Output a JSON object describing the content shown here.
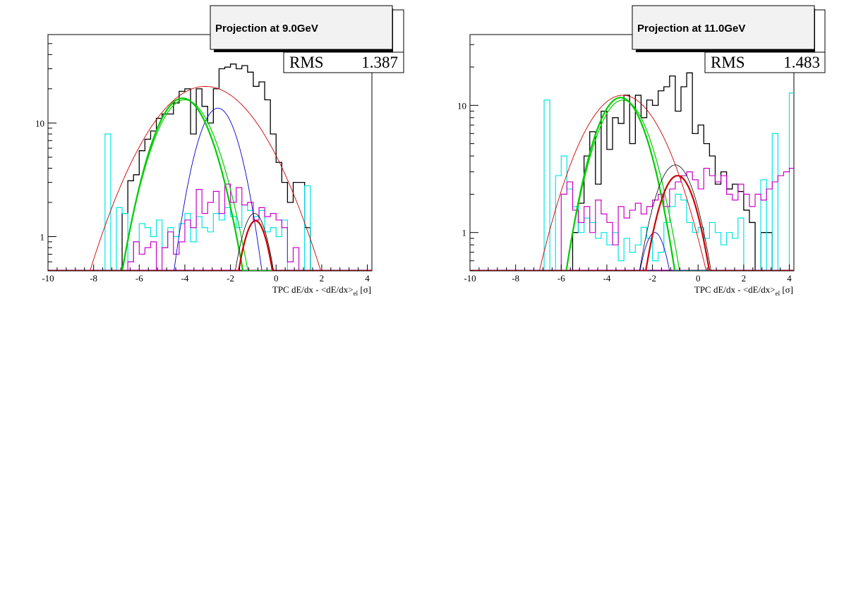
{
  "chart_data": [
    {
      "type": "histogram",
      "title": "Projection at 9.0GeV",
      "xlabel_main": "TPC dE/dx - <dE/dx>",
      "xlabel_sub": "el",
      "xlabel_unit": " [σ]",
      "xlim": [
        -10,
        4.2
      ],
      "ylim": [
        0.5,
        60
      ],
      "yscale": "log",
      "xticks": [
        "-10",
        "-8",
        "-6",
        "-4",
        "-2",
        "0",
        "2",
        "4"
      ],
      "yticks": [
        "1",
        "10"
      ],
      "stats": {
        "label": "RMS",
        "value": "1.387"
      },
      "series": [
        {
          "color": "#000000",
          "width": 1.3,
          "x_start": -7.0,
          "bin_width": 0.25,
          "values": [
            0.5,
            1.6,
            3.1,
            3.5,
            5.7,
            7.2,
            8.5,
            11,
            12,
            12,
            15,
            19,
            20,
            8,
            20,
            14,
            10,
            20,
            30,
            31,
            33,
            30,
            32,
            28,
            21,
            23,
            16,
            8,
            4.5,
            3,
            2,
            3,
            3,
            1.2
          ]
        },
        {
          "color": "#00e5e5",
          "width": 1.2,
          "x_start": -7.5,
          "bin_width": 0.25,
          "values": [
            8,
            0.5,
            1.8,
            1.6,
            0.6,
            0.9,
            1.3,
            1.2,
            1.0,
            1.4,
            0.8,
            1.2,
            1.0,
            1.3,
            1.6,
            0.9,
            1.5,
            1.2,
            1.1,
            1.6,
            1.4,
            1.8,
            1.5,
            1.2,
            1.9,
            1.7,
            1.5,
            1.7,
            1.1,
            1.2,
            1.0,
            1.4,
            0.5,
            0.5,
            0.5,
            2.8
          ]
        },
        {
          "color": "#cc00cc",
          "width": 1.2,
          "x_start": -6.5,
          "bin_width": 0.25,
          "values": [
            0.6,
            0.9,
            0.7,
            0.8,
            0.9,
            0.5,
            0.8,
            1.1,
            0.7,
            0.9,
            1.4,
            1.2,
            2.6,
            1.6,
            2.0,
            2.5,
            1.6,
            2.9,
            2.0,
            2.7,
            1.9,
            2.0,
            1.4,
            1.8,
            1.5,
            1.6,
            1.4,
            1.2,
            0.6,
            0.8
          ]
        },
        {
          "color": "#cc0000",
          "width": 0.9,
          "curve": {
            "amp": 21,
            "mu": -3.1,
            "sigma": 1.85
          }
        },
        {
          "color": "#0000cc",
          "width": 0.9,
          "curve": {
            "amp": 13.5,
            "mu": -2.55,
            "sigma": 0.75
          }
        },
        {
          "color": "#00cc00",
          "width": 2.2,
          "curve": {
            "amp": 16.5,
            "mu": -4.1,
            "sigma": 1.0
          }
        },
        {
          "color": "#00cc00",
          "width": 1.2,
          "curve": {
            "amp": 16,
            "mu": -4.0,
            "sigma": 1.05
          }
        },
        {
          "color": "#cc0000",
          "width": 2.2,
          "curve": {
            "amp": 1.38,
            "mu": -0.9,
            "sigma": 0.52
          }
        },
        {
          "color": "#000000",
          "width": 0.8,
          "curve": {
            "amp": 1.6,
            "mu": -0.95,
            "sigma": 0.55
          }
        }
      ]
    },
    {
      "type": "histogram",
      "title": "Projection at 11.0GeV",
      "xlabel_main": "TPC dE/dx - <dE/dx>",
      "xlabel_sub": "el",
      "xlabel_unit": " [σ]",
      "xlim": [
        -10,
        4.2
      ],
      "ylim": [
        0.5,
        36
      ],
      "yscale": "log",
      "xticks": [
        "-10",
        "-8",
        "-6",
        "-4",
        "-2",
        "0",
        "2",
        "4"
      ],
      "yticks": [
        "1",
        "10"
      ],
      "stats": {
        "label": "RMS",
        "value": "1.483"
      },
      "series": [
        {
          "color": "#000000",
          "width": 1.3,
          "x_start": -5.5,
          "bin_width": 0.25,
          "values": [
            1.0,
            1.7,
            4.0,
            6.2,
            2.4,
            9.0,
            4.5,
            8.0,
            7.2,
            12,
            5,
            12,
            8,
            11,
            10,
            13,
            14,
            17,
            9,
            14,
            18,
            6,
            7,
            5,
            4.0,
            2.4,
            3.0,
            2.2,
            2.4,
            2.1,
            1.5,
            1.2,
            0.5,
            1.0,
            1.0
          ]
        },
        {
          "color": "#00e5e5",
          "width": 1.2,
          "x_start": -6.75,
          "bin_width": 0.25,
          "values": [
            11,
            0.5,
            2.8,
            4.0,
            2.2,
            1.6,
            1.0,
            1.3,
            1.2,
            0.9,
            1.0,
            0.8,
            1.0,
            0.6,
            0.9,
            0.7,
            0.8,
            1.1,
            0.9,
            0.6,
            0.7,
            1.2,
            1.6,
            2.0,
            1.8,
            1.2,
            1.0,
            1.1,
            0.9,
            1.2,
            1.0,
            0.8,
            1.0,
            0.9,
            1.3,
            0.5,
            0.5,
            0.5,
            2.6,
            0.5,
            6,
            0.5,
            0.5,
            12.5
          ]
        },
        {
          "color": "#cc00cc",
          "width": 1.2,
          "x_start": -6.0,
          "bin_width": 0.25,
          "values": [
            2.0,
            2.5,
            1.5,
            1.2,
            1.6,
            1.0,
            1.8,
            1.4,
            1.2,
            0.8,
            1.6,
            1.3,
            1.5,
            1.7,
            1.4,
            1.6,
            1.8,
            2.0,
            1.6,
            2.2,
            2.5,
            2.8,
            3.0,
            2.6,
            2.2,
            3.2,
            2.8,
            2.5,
            2.8,
            2.0,
            1.8,
            2.4,
            2.0,
            1.6,
            2.0,
            1.8,
            2.2,
            2.5,
            2.8,
            3.0,
            3.2
          ]
        },
        {
          "color": "#cc0000",
          "width": 0.9,
          "curve": {
            "amp": 12,
            "mu": -3.3,
            "sigma": 1.45
          }
        },
        {
          "color": "#00cc00",
          "width": 2.2,
          "curve": {
            "amp": 11.5,
            "mu": -3.4,
            "sigma": 0.95
          }
        },
        {
          "color": "#00cc00",
          "width": 1.2,
          "curve": {
            "amp": 11,
            "mu": -3.3,
            "sigma": 1.0
          }
        },
        {
          "color": "#0000cc",
          "width": 0.9,
          "curve": {
            "amp": 1.0,
            "mu": -1.9,
            "sigma": 0.55
          }
        },
        {
          "color": "#cc0000",
          "width": 2.2,
          "curve": {
            "amp": 2.8,
            "mu": -0.9,
            "sigma": 0.75
          }
        },
        {
          "color": "#000000",
          "width": 0.8,
          "curve": {
            "amp": 3.4,
            "mu": -1.0,
            "sigma": 0.8
          }
        }
      ]
    }
  ]
}
